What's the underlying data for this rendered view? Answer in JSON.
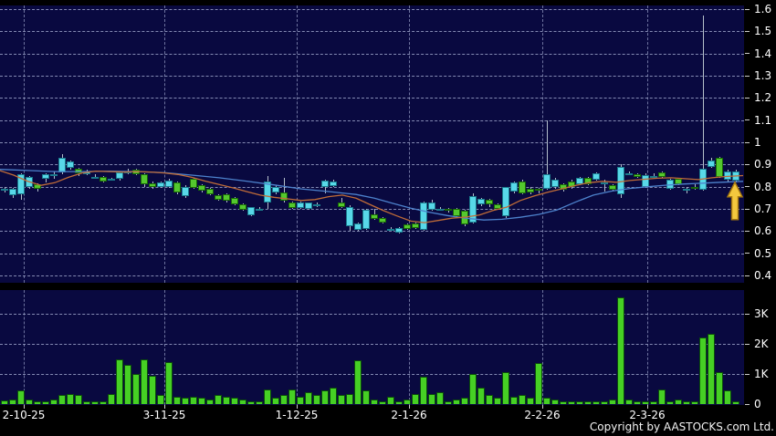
{
  "copyright": "Copyright by AASTOCKS.com Ltd.",
  "colors": {
    "background": "#000000",
    "panel": "#090940",
    "grid": "#9aa1c8",
    "text": "#ffffff",
    "up": "#58d8e8",
    "up_border": "#1a7a8c",
    "down": "#54c82e",
    "down_border": "#186806",
    "wick": "#b4bfca",
    "ma_fast": "#c06c38",
    "ma_slow": "#4d82cc",
    "volume_fill": "#46d024",
    "volume_border": "#0b4d0b",
    "arrow_fill": "#f3c83e",
    "arrow_stroke": "#a87a10"
  },
  "chart_data": {
    "type": "candlestick_with_volume",
    "title": "",
    "price_axis": {
      "min": 0.4,
      "max": 1.6,
      "step": 0.1,
      "tick_labels": [
        "1.6",
        "1.5",
        "1.4",
        "1.3",
        "1.2",
        "1.1",
        "1",
        "0.9",
        "0.8",
        "0.7",
        "0.6",
        "0.5",
        "0.4"
      ]
    },
    "volume_axis": {
      "min": 0,
      "max_visible": 3600,
      "tick_labels": [
        "3K",
        "2K",
        "1K",
        "0"
      ],
      "tick_values": [
        3000,
        2000,
        1000,
        0
      ]
    },
    "x_ticks": [
      {
        "label": "2-10-25",
        "x": 26
      },
      {
        "label": "3-11-25",
        "x": 180
      },
      {
        "label": "1-12-25",
        "x": 325
      },
      {
        "label": "2-1-26",
        "x": 448
      },
      {
        "label": "2-2-26",
        "x": 594
      },
      {
        "label": "2-3-26",
        "x": 709
      }
    ],
    "grid": {
      "horizontal": true,
      "vertical_at_month_ticks": true
    },
    "annotation": {
      "type": "up-arrow",
      "x": 805,
      "tip_price": 0.82
    },
    "legend": {
      "ma_fast": "moving average (fast, orange)",
      "ma_slow": "moving average (slow, blue)"
    },
    "candles_format": [
      "x",
      "open",
      "high",
      "low",
      "close",
      "volume"
    ],
    "candles": [
      [
        5,
        0.79,
        0.8,
        0.775,
        0.79,
        120
      ],
      [
        14,
        0.76,
        0.795,
        0.75,
        0.79,
        150
      ],
      [
        23,
        0.765,
        0.86,
        0.74,
        0.855,
        450
      ],
      [
        32,
        0.8,
        0.85,
        0.79,
        0.845,
        150
      ],
      [
        41,
        0.81,
        0.815,
        0.78,
        0.79,
        100
      ],
      [
        50,
        0.835,
        0.86,
        0.82,
        0.855,
        80
      ],
      [
        59,
        0.85,
        0.87,
        0.835,
        0.855,
        150
      ],
      [
        68,
        0.865,
        0.945,
        0.855,
        0.93,
        300
      ],
      [
        77,
        0.885,
        0.92,
        0.875,
        0.915,
        350
      ],
      [
        86,
        0.88,
        0.885,
        0.85,
        0.86,
        300
      ],
      [
        95,
        0.855,
        0.875,
        0.85,
        0.87,
        100
      ],
      [
        104,
        0.845,
        0.855,
        0.835,
        0.845,
        100
      ],
      [
        113,
        0.845,
        0.85,
        0.82,
        0.825,
        100
      ],
      [
        122,
        0.83,
        0.84,
        0.825,
        0.835,
        350
      ],
      [
        131,
        0.835,
        0.87,
        0.825,
        0.865,
        1500
      ],
      [
        140,
        0.865,
        0.88,
        0.855,
        0.87,
        1300
      ],
      [
        149,
        0.875,
        0.88,
        0.85,
        0.855,
        1000
      ],
      [
        158,
        0.855,
        0.86,
        0.8,
        0.81,
        1500
      ],
      [
        167,
        0.815,
        0.825,
        0.79,
        0.8,
        950
      ],
      [
        176,
        0.8,
        0.825,
        0.795,
        0.82,
        300
      ],
      [
        185,
        0.8,
        0.835,
        0.795,
        0.828,
        1400
      ],
      [
        194,
        0.82,
        0.825,
        0.765,
        0.772,
        250
      ],
      [
        203,
        0.758,
        0.805,
        0.75,
        0.8,
        200
      ],
      [
        212,
        0.835,
        0.84,
        0.79,
        0.795,
        250
      ],
      [
        221,
        0.805,
        0.81,
        0.775,
        0.78,
        200
      ],
      [
        230,
        0.79,
        0.795,
        0.76,
        0.765,
        150
      ],
      [
        239,
        0.76,
        0.765,
        0.735,
        0.74,
        300
      ],
      [
        248,
        0.765,
        0.77,
        0.73,
        0.735,
        250
      ],
      [
        257,
        0.75,
        0.755,
        0.715,
        0.72,
        200
      ],
      [
        266,
        0.72,
        0.725,
        0.69,
        0.694,
        150
      ],
      [
        275,
        0.673,
        0.71,
        0.665,
        0.708,
        100
      ],
      [
        284,
        0.7,
        0.71,
        0.69,
        0.7,
        100
      ],
      [
        293,
        0.728,
        0.85,
        0.7,
        0.825,
        500
      ],
      [
        302,
        0.772,
        0.805,
        0.765,
        0.8,
        200
      ],
      [
        311,
        0.775,
        0.84,
        0.73,
        0.735,
        300
      ],
      [
        320,
        0.73,
        0.735,
        0.7,
        0.705,
        500
      ],
      [
        329,
        0.705,
        0.735,
        0.7,
        0.73,
        250
      ],
      [
        338,
        0.7,
        0.73,
        0.695,
        0.727,
        400
      ],
      [
        347,
        0.72,
        0.73,
        0.71,
        0.72,
        300
      ],
      [
        356,
        0.8,
        0.83,
        0.77,
        0.827,
        450
      ],
      [
        365,
        0.803,
        0.83,
        0.8,
        0.822,
        550
      ],
      [
        374,
        0.73,
        0.75,
        0.705,
        0.71,
        300
      ],
      [
        383,
        0.62,
        0.715,
        0.6,
        0.71,
        350
      ],
      [
        392,
        0.605,
        0.64,
        0.6,
        0.635,
        1450
      ],
      [
        401,
        0.61,
        0.7,
        0.605,
        0.695,
        450
      ],
      [
        410,
        0.675,
        0.7,
        0.65,
        0.655,
        150
      ],
      [
        419,
        0.66,
        0.665,
        0.635,
        0.64,
        100
      ],
      [
        428,
        0.61,
        0.62,
        0.6,
        0.61,
        250
      ],
      [
        437,
        0.595,
        0.62,
        0.59,
        0.615,
        100
      ],
      [
        446,
        0.63,
        0.635,
        0.605,
        0.61,
        150
      ],
      [
        455,
        0.635,
        0.64,
        0.61,
        0.615,
        350
      ],
      [
        464,
        0.605,
        0.735,
        0.6,
        0.73,
        900
      ],
      [
        473,
        0.695,
        0.74,
        0.69,
        0.73,
        350
      ],
      [
        482,
        0.7,
        0.71,
        0.69,
        0.7,
        400
      ],
      [
        491,
        0.7,
        0.705,
        0.685,
        0.69,
        100
      ],
      [
        500,
        0.702,
        0.705,
        0.66,
        0.668,
        150
      ],
      [
        509,
        0.69,
        0.695,
        0.62,
        0.63,
        200
      ],
      [
        518,
        0.64,
        0.77,
        0.635,
        0.757,
        1000
      ],
      [
        527,
        0.72,
        0.75,
        0.71,
        0.745,
        550
      ],
      [
        536,
        0.74,
        0.745,
        0.71,
        0.72,
        300
      ],
      [
        545,
        0.72,
        0.725,
        0.695,
        0.7,
        200
      ],
      [
        554,
        0.667,
        0.8,
        0.66,
        0.797,
        1050
      ],
      [
        563,
        0.777,
        0.825,
        0.77,
        0.818,
        250
      ],
      [
        572,
        0.824,
        0.83,
        0.765,
        0.77,
        300
      ],
      [
        581,
        0.792,
        0.8,
        0.765,
        0.772,
        200
      ],
      [
        590,
        0.79,
        0.795,
        0.77,
        0.78,
        1350
      ],
      [
        599,
        0.79,
        1.1,
        0.785,
        0.858,
        200
      ],
      [
        608,
        0.8,
        0.84,
        0.79,
        0.83,
        150
      ],
      [
        617,
        0.81,
        0.815,
        0.78,
        0.785,
        100
      ],
      [
        626,
        0.824,
        0.83,
        0.79,
        0.797,
        80
      ],
      [
        635,
        0.81,
        0.845,
        0.805,
        0.838,
        100
      ],
      [
        644,
        0.84,
        0.845,
        0.805,
        0.81,
        80
      ],
      [
        653,
        0.83,
        0.865,
        0.825,
        0.86,
        100
      ],
      [
        662,
        0.82,
        0.83,
        0.78,
        0.82,
        80
      ],
      [
        671,
        0.805,
        0.81,
        0.78,
        0.785,
        150
      ],
      [
        680,
        0.765,
        0.9,
        0.75,
        0.89,
        3550
      ],
      [
        689,
        0.86,
        0.87,
        0.85,
        0.86,
        150
      ],
      [
        698,
        0.855,
        0.86,
        0.84,
        0.845,
        100
      ],
      [
        707,
        0.8,
        0.86,
        0.795,
        0.853,
        100
      ],
      [
        716,
        0.85,
        0.86,
        0.84,
        0.85,
        80
      ],
      [
        725,
        0.865,
        0.87,
        0.84,
        0.845,
        500
      ],
      [
        734,
        0.79,
        0.835,
        0.785,
        0.83,
        100
      ],
      [
        743,
        0.837,
        0.84,
        0.805,
        0.81,
        150
      ],
      [
        752,
        0.79,
        0.8,
        0.77,
        0.79,
        100
      ],
      [
        761,
        0.8,
        0.81,
        0.785,
        0.795,
        80
      ],
      [
        770,
        0.785,
        1.57,
        0.78,
        0.88,
        2200
      ],
      [
        779,
        0.89,
        0.93,
        0.885,
        0.92,
        2350
      ],
      [
        788,
        0.93,
        0.935,
        0.84,
        0.845,
        1050
      ],
      [
        797,
        0.83,
        0.875,
        0.825,
        0.87,
        450
      ],
      [
        806,
        0.825,
        0.875,
        0.82,
        0.87,
        100
      ]
    ],
    "ma_fast_points": [
      [
        0,
        0.872
      ],
      [
        15,
        0.852
      ],
      [
        30,
        0.825
      ],
      [
        45,
        0.806
      ],
      [
        60,
        0.818
      ],
      [
        75,
        0.842
      ],
      [
        90,
        0.862
      ],
      [
        105,
        0.87
      ],
      [
        120,
        0.868
      ],
      [
        135,
        0.866
      ],
      [
        150,
        0.868
      ],
      [
        165,
        0.866
      ],
      [
        180,
        0.862
      ],
      [
        195,
        0.855
      ],
      [
        210,
        0.842
      ],
      [
        225,
        0.825
      ],
      [
        240,
        0.81
      ],
      [
        255,
        0.795
      ],
      [
        270,
        0.778
      ],
      [
        285,
        0.762
      ],
      [
        300,
        0.752
      ],
      [
        315,
        0.745
      ],
      [
        330,
        0.738
      ],
      [
        345,
        0.742
      ],
      [
        360,
        0.755
      ],
      [
        375,
        0.762
      ],
      [
        390,
        0.748
      ],
      [
        405,
        0.72
      ],
      [
        420,
        0.692
      ],
      [
        435,
        0.668
      ],
      [
        450,
        0.645
      ],
      [
        465,
        0.638
      ],
      [
        480,
        0.648
      ],
      [
        495,
        0.658
      ],
      [
        510,
        0.663
      ],
      [
        525,
        0.672
      ],
      [
        540,
        0.693
      ],
      [
        555,
        0.708
      ],
      [
        570,
        0.738
      ],
      [
        585,
        0.758
      ],
      [
        600,
        0.775
      ],
      [
        615,
        0.79
      ],
      [
        630,
        0.805
      ],
      [
        645,
        0.818
      ],
      [
        660,
        0.824
      ],
      [
        675,
        0.82
      ],
      [
        690,
        0.828
      ],
      [
        705,
        0.833
      ],
      [
        720,
        0.838
      ],
      [
        735,
        0.84
      ],
      [
        750,
        0.836
      ],
      [
        765,
        0.832
      ],
      [
        780,
        0.84
      ],
      [
        795,
        0.846
      ],
      [
        814,
        0.85
      ]
    ],
    "ma_slow_points": [
      [
        0,
        0.878
      ],
      [
        30,
        0.873
      ],
      [
        60,
        0.868
      ],
      [
        90,
        0.868
      ],
      [
        120,
        0.87
      ],
      [
        150,
        0.868
      ],
      [
        180,
        0.863
      ],
      [
        210,
        0.852
      ],
      [
        240,
        0.84
      ],
      [
        270,
        0.825
      ],
      [
        300,
        0.808
      ],
      [
        330,
        0.79
      ],
      [
        360,
        0.778
      ],
      [
        390,
        0.765
      ],
      [
        410,
        0.748
      ],
      [
        430,
        0.725
      ],
      [
        450,
        0.703
      ],
      [
        470,
        0.685
      ],
      [
        490,
        0.67
      ],
      [
        510,
        0.658
      ],
      [
        530,
        0.65
      ],
      [
        550,
        0.653
      ],
      [
        570,
        0.662
      ],
      [
        590,
        0.675
      ],
      [
        610,
        0.695
      ],
      [
        630,
        0.73
      ],
      [
        650,
        0.762
      ],
      [
        670,
        0.78
      ],
      [
        690,
        0.792
      ],
      [
        710,
        0.8
      ],
      [
        730,
        0.807
      ],
      [
        750,
        0.812
      ],
      [
        770,
        0.816
      ],
      [
        790,
        0.82
      ],
      [
        814,
        0.824
      ]
    ]
  }
}
